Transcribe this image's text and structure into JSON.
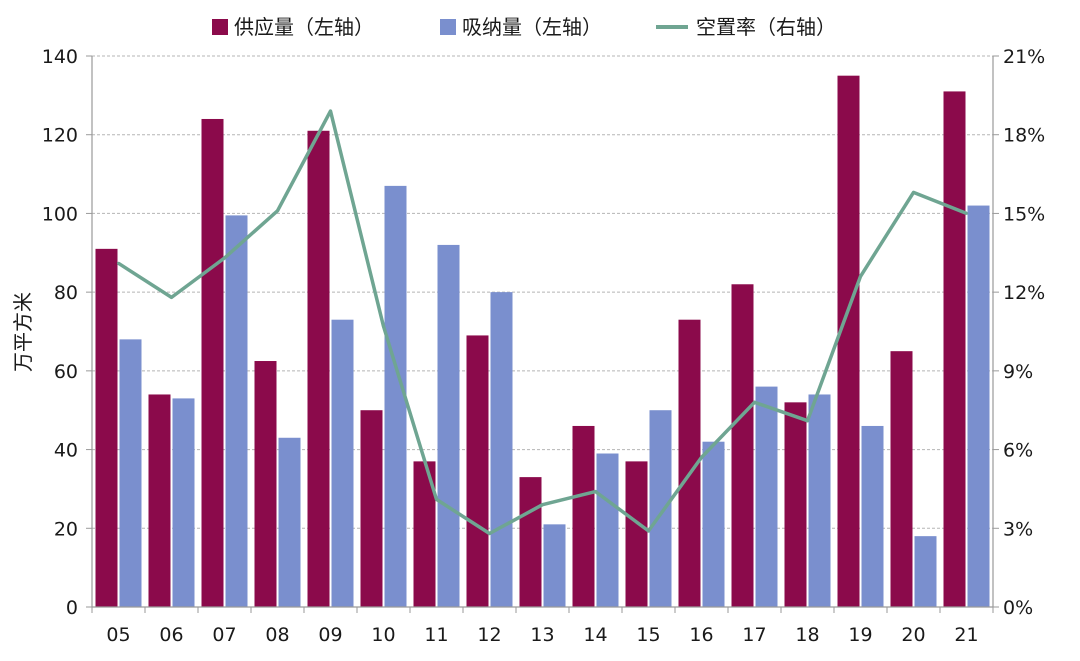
{
  "chart_data": {
    "type": "bar",
    "categories": [
      "05",
      "06",
      "07",
      "08",
      "09",
      "10",
      "11",
      "12",
      "13",
      "14",
      "15",
      "16",
      "17",
      "18",
      "19",
      "20",
      "21"
    ],
    "series": [
      {
        "name": "供应量（左轴）",
        "kind": "bar",
        "axis": "left",
        "color": "#8B0A4B",
        "values": [
          91,
          54,
          124,
          62.5,
          121,
          50,
          37,
          69,
          33,
          46,
          37,
          73,
          82,
          52,
          135,
          65,
          131
        ]
      },
      {
        "name": "吸纳量（左轴）",
        "kind": "bar",
        "axis": "left",
        "color": "#7A8FCE",
        "values": [
          68,
          53,
          99.5,
          43,
          73,
          107,
          92,
          80,
          21,
          39,
          50,
          42,
          56,
          54,
          46,
          18,
          102
        ]
      },
      {
        "name": "空置率（右轴）",
        "kind": "line",
        "axis": "right",
        "color": "#6FA592",
        "values": [
          13.1,
          11.8,
          13.3,
          15.1,
          18.9,
          10.7,
          4.1,
          2.8,
          3.9,
          4.4,
          2.9,
          5.7,
          7.8,
          7.1,
          12.6,
          15.8,
          15.0
        ]
      }
    ],
    "ylabel": "万平方米",
    "ylim": [
      0,
      140
    ],
    "yticks": [
      "0",
      "20",
      "40",
      "60",
      "80",
      "100",
      "120",
      "140"
    ],
    "y2lim": [
      0,
      21
    ],
    "y2ticks": [
      "0%",
      "3%",
      "6%",
      "9%",
      "12%",
      "15%",
      "18%",
      "21%"
    ],
    "grid": true,
    "legend_position": "top"
  }
}
